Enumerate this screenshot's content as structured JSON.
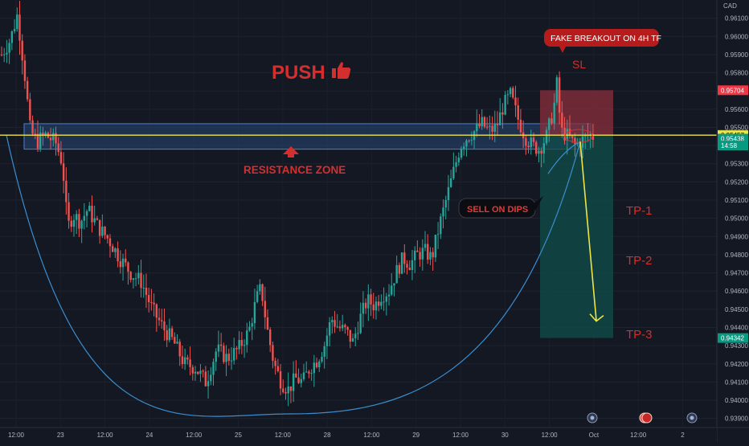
{
  "chart_data": {
    "type": "candlestick",
    "currency": "CAD",
    "y_axis": {
      "min": 0.9385,
      "max": 0.962,
      "ticks": [
        0.961,
        0.96,
        0.959,
        0.958,
        0.957,
        0.956,
        0.955,
        0.954,
        0.953,
        0.952,
        0.951,
        0.95,
        0.949,
        0.948,
        0.947,
        0.946,
        0.945,
        0.944,
        0.943,
        0.942,
        0.941,
        0.94,
        0.939
      ],
      "tick_labels": [
        "0.96100",
        "0.96000",
        "0.95900",
        "0.95800",
        "0.95700",
        "0.95600",
        "0.95500",
        "0.95400",
        "0.95300",
        "0.95200",
        "0.95100",
        "0.95000",
        "0.94900",
        "0.94800",
        "0.94700",
        "0.94600",
        "0.94500",
        "0.94400",
        "0.94300",
        "0.94200",
        "0.94100",
        "0.94000",
        "0.93900"
      ]
    },
    "x_axis": {
      "labels": [
        "12:00",
        "23",
        "12:00",
        "24",
        "12:00",
        "25",
        "12:00",
        "28",
        "12:00",
        "29",
        "12:00",
        "30",
        "12:00",
        "Oct",
        "12:00",
        "2"
      ]
    },
    "price_badges": [
      {
        "label": "0.95704",
        "value": 0.95704,
        "color": "#f23645"
      },
      {
        "label": "0.95460",
        "value": 0.9546,
        "color": "#2a4a7a"
      },
      {
        "label": "0.95457",
        "value": 0.95457,
        "color": "#f0e442"
      },
      {
        "label": "0.95438",
        "value": 0.95438,
        "color": "#089981"
      },
      {
        "label": "14:58",
        "value": 0.954,
        "color": "#089981"
      },
      {
        "label": "0.94342",
        "value": 0.94342,
        "color": "#089981"
      }
    ],
    "price_path": [
      [
        0,
        0.959
      ],
      [
        0.012,
        0.9598
      ],
      [
        0.022,
        0.9612
      ],
      [
        0.032,
        0.958
      ],
      [
        0.04,
        0.9548
      ],
      [
        0.05,
        0.9542
      ],
      [
        0.06,
        0.9546
      ],
      [
        0.075,
        0.9542
      ],
      [
        0.085,
        0.953
      ],
      [
        0.092,
        0.9495
      ],
      [
        0.1,
        0.9502
      ],
      [
        0.11,
        0.9498
      ],
      [
        0.12,
        0.9505
      ],
      [
        0.135,
        0.9495
      ],
      [
        0.15,
        0.9488
      ],
      [
        0.165,
        0.9478
      ],
      [
        0.18,
        0.947
      ],
      [
        0.195,
        0.9465
      ],
      [
        0.21,
        0.945
      ],
      [
        0.225,
        0.944
      ],
      [
        0.24,
        0.9432
      ],
      [
        0.255,
        0.942
      ],
      [
        0.27,
        0.9418
      ],
      [
        0.285,
        0.941
      ],
      [
        0.3,
        0.9428
      ],
      [
        0.315,
        0.9423
      ],
      [
        0.33,
        0.9428
      ],
      [
        0.345,
        0.9438
      ],
      [
        0.355,
        0.9455
      ],
      [
        0.362,
        0.9462
      ],
      [
        0.37,
        0.944
      ],
      [
        0.38,
        0.942
      ],
      [
        0.39,
        0.941
      ],
      [
        0.4,
        0.9406
      ],
      [
        0.41,
        0.9412
      ],
      [
        0.42,
        0.941
      ],
      [
        0.43,
        0.9418
      ],
      [
        0.44,
        0.9422
      ],
      [
        0.45,
        0.943
      ],
      [
        0.46,
        0.9445
      ],
      [
        0.47,
        0.944
      ],
      [
        0.48,
        0.9438
      ],
      [
        0.49,
        0.9432
      ],
      [
        0.5,
        0.9445
      ],
      [
        0.51,
        0.9455
      ],
      [
        0.52,
        0.9452
      ],
      [
        0.53,
        0.9458
      ],
      [
        0.54,
        0.946
      ],
      [
        0.55,
        0.947
      ],
      [
        0.56,
        0.9478
      ],
      [
        0.57,
        0.9475
      ],
      [
        0.58,
        0.948
      ],
      [
        0.59,
        0.9482
      ],
      [
        0.6,
        0.9478
      ],
      [
        0.61,
        0.9495
      ],
      [
        0.62,
        0.951
      ],
      [
        0.63,
        0.9525
      ],
      [
        0.64,
        0.954
      ],
      [
        0.65,
        0.9545
      ],
      [
        0.66,
        0.9548
      ],
      [
        0.67,
        0.9552
      ],
      [
        0.68,
        0.9548
      ],
      [
        0.69,
        0.955
      ],
      [
        0.7,
        0.9562
      ],
      [
        0.71,
        0.9568
      ],
      [
        0.72,
        0.9555
      ],
      [
        0.73,
        0.9545
      ],
      [
        0.74,
        0.954
      ],
      [
        0.75,
        0.9538
      ],
      [
        0.76,
        0.9545
      ],
      [
        0.77,
        0.956
      ],
      [
        0.775,
        0.9575
      ],
      [
        0.78,
        0.9548
      ],
      [
        0.79,
        0.9545
      ],
      [
        0.8,
        0.954
      ],
      [
        0.81,
        0.9543
      ],
      [
        0.82,
        0.9546
      ],
      [
        0.825,
        0.9545
      ]
    ],
    "annotations": {
      "push_label": "PUSH",
      "resistance_label": "RESISTANCE ZONE",
      "fake_breakout_label": "FAKE BREAKOUT ON 4H TF",
      "sl_label": "SL",
      "sell_label": "SELL ON DIPS",
      "tp1_label": "TP-1",
      "tp2_label": "TP-2",
      "tp3_label": "TP-3"
    },
    "levels": {
      "resistance_high": 0.9552,
      "resistance_low": 0.9538,
      "yellow_line": 0.95457,
      "stop_loss": 0.95704,
      "entry": 0.95457,
      "target": 0.94342,
      "cup_bottom": 0.93925
    },
    "colors": {
      "up": "#26a69a",
      "down": "#ef5350",
      "annotation": "#d32f2f",
      "cup": "#3a8ed0",
      "yellow": "#f0e442",
      "zone_fill": "#2b4f86",
      "zone_stroke": "#4a7fd0",
      "sl_fill": "#8a2f3c",
      "tp_fill": "#0f4d49"
    }
  }
}
